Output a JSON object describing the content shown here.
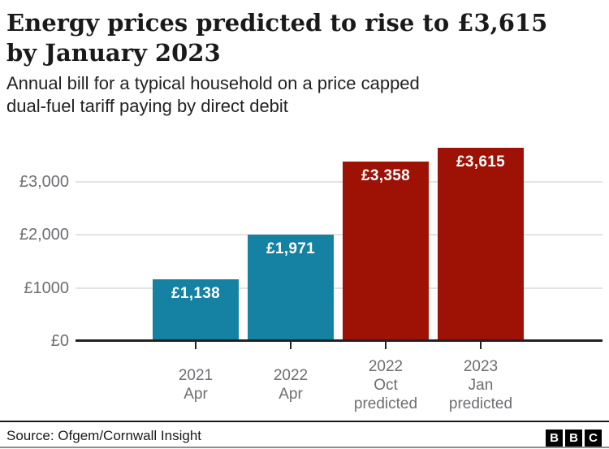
{
  "header": {
    "title": "Energy prices predicted to rise to £3,615 by January 2023",
    "title_lines": [
      "Energy prices predicted to rise to £3,615",
      "by January 2023"
    ],
    "subtitle_lines": [
      "Annual bill for a typical household on a price capped",
      "dual-fuel tariff paying by direct debit"
    ]
  },
  "chart_data": {
    "type": "bar",
    "title": "Energy prices predicted to rise to £3,615 by January 2023",
    "subtitle": "Annual bill for a typical household on a price capped dual-fuel tariff paying by direct debit",
    "categories": [
      [
        "2021",
        "Apr"
      ],
      [
        "2022",
        "Apr"
      ],
      [
        "2022",
        "Oct",
        "predicted"
      ],
      [
        "2023",
        "Jan",
        "predicted"
      ]
    ],
    "values": [
      1138,
      1971,
      3358,
      3615
    ],
    "bar_labels": [
      "£1,138",
      "£1,971",
      "£3,358",
      "£3,615"
    ],
    "bar_colors": [
      "#1581a3",
      "#1581a3",
      "#9e1206",
      "#9e1206"
    ],
    "y_ticks": [
      {
        "value": 0,
        "label": "£0"
      },
      {
        "value": 1000,
        "label": "£1000"
      },
      {
        "value": 2000,
        "label": "£2,000"
      },
      {
        "value": 3000,
        "label": "£3,000"
      }
    ],
    "xlabel": "",
    "ylabel": "",
    "ylim": [
      0,
      3700
    ],
    "grid": "horizontal",
    "legend": "none"
  },
  "footer": {
    "source": "Source: Ofgem/Cornwall Insight",
    "logo_letters": [
      "B",
      "B",
      "C"
    ]
  },
  "colors": {
    "bar_blue": "#1581a3",
    "bar_red": "#9e1206",
    "gridline": "#e3e3e3",
    "axis": "#222222",
    "label_gray": "#6e6e73",
    "divider_dark": "#1a1a1a",
    "bottom_rule": "#8e8e8e",
    "bar_label_text": "#ffffff"
  }
}
